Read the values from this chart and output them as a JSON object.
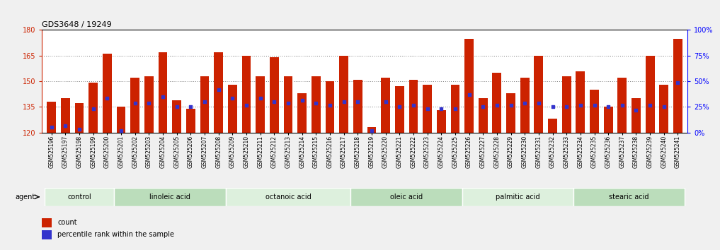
{
  "title": "GDS3648 / 19249",
  "ylim_left": [
    120,
    180
  ],
  "ylim_right": [
    0,
    100
  ],
  "yticks_left": [
    120,
    135,
    150,
    165,
    180
  ],
  "yticks_right": [
    0,
    25,
    50,
    75,
    100
  ],
  "bar_color": "#cc2200",
  "dot_color": "#3333cc",
  "categories": [
    "GSM525196",
    "GSM525197",
    "GSM525198",
    "GSM525199",
    "GSM525200",
    "GSM525201",
    "GSM525202",
    "GSM525203",
    "GSM525204",
    "GSM525205",
    "GSM525206",
    "GSM525207",
    "GSM525208",
    "GSM525209",
    "GSM525210",
    "GSM525211",
    "GSM525212",
    "GSM525213",
    "GSM525214",
    "GSM525215",
    "GSM525216",
    "GSM525217",
    "GSM525218",
    "GSM525219",
    "GSM525220",
    "GSM525221",
    "GSM525222",
    "GSM525223",
    "GSM525224",
    "GSM525225",
    "GSM525226",
    "GSM525227",
    "GSM525228",
    "GSM525229",
    "GSM525230",
    "GSM525231",
    "GSM525232",
    "GSM525233",
    "GSM525234",
    "GSM525235",
    "GSM525236",
    "GSM525237",
    "GSM525238",
    "GSM525239",
    "GSM525240",
    "GSM525241"
  ],
  "bar_heights": [
    138,
    140,
    137,
    149,
    166,
    135,
    152,
    153,
    167,
    139,
    134,
    153,
    167,
    148,
    165,
    153,
    164,
    153,
    143,
    153,
    150,
    165,
    151,
    123,
    152,
    147,
    151,
    148,
    133,
    148,
    175,
    140,
    155,
    143,
    152,
    165,
    128,
    153,
    156,
    145,
    135,
    152,
    140,
    165,
    148,
    175
  ],
  "dot_positions": [
    123,
    124,
    122,
    134,
    140,
    121,
    137,
    137,
    141,
    135,
    135,
    138,
    145,
    140,
    136,
    140,
    138,
    137,
    139,
    137,
    136,
    138,
    138,
    121,
    138,
    135,
    136,
    134,
    134,
    134,
    142,
    135,
    136,
    136,
    137,
    137,
    135,
    135,
    136,
    136,
    135,
    136,
    133,
    136,
    135,
    149
  ],
  "groups": [
    {
      "label": "control",
      "start": 0,
      "end": 5,
      "color": "#ddf0dd"
    },
    {
      "label": "linoleic acid",
      "start": 5,
      "end": 13,
      "color": "#bbddbb"
    },
    {
      "label": "octanoic acid",
      "start": 13,
      "end": 22,
      "color": "#ddf0dd"
    },
    {
      "label": "oleic acid",
      "start": 22,
      "end": 30,
      "color": "#bbddbb"
    },
    {
      "label": "palmitic acid",
      "start": 30,
      "end": 38,
      "color": "#ddf0dd"
    },
    {
      "label": "stearic acid",
      "start": 38,
      "end": 46,
      "color": "#bbddbb"
    }
  ],
  "fig_bg": "#f0f0f0",
  "plot_bg": "#ffffff",
  "xticklabel_fontsize": 5.5,
  "yticklabel_fontsize": 7,
  "title_fontsize": 8,
  "group_label_fontsize": 7,
  "legend_fontsize": 7
}
